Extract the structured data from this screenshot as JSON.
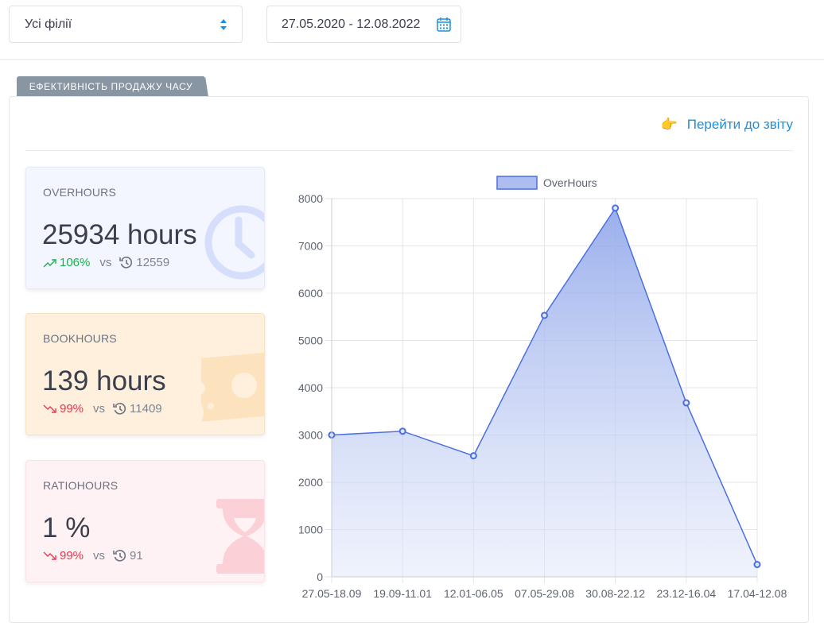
{
  "filters": {
    "branch_select": "Усі філії",
    "date_range": "27.05.2020 - 12.08.2022"
  },
  "section": {
    "tab_label": "ЕФЕКТИВНІСТЬ ПРОДАЖУ ЧАСУ",
    "report_link": "Перейти до звіту",
    "report_link_icon": "👉"
  },
  "cards": [
    {
      "label": "OVERHOURS",
      "value": "25934 hours",
      "trend": "up",
      "pct": "106%",
      "vs": "vs",
      "prev": "12559",
      "icon": "clock-icon"
    },
    {
      "label": "BOOKHOURS",
      "value": "139 hours",
      "trend": "down",
      "pct": "99%",
      "vs": "vs",
      "prev": "11409",
      "icon": "ticket-icon"
    },
    {
      "label": "RATIOHOURS",
      "value": "1 %",
      "trend": "down",
      "pct": "99%",
      "vs": "vs",
      "prev": "91",
      "icon": "hourglass-icon"
    }
  ],
  "colors": {
    "accent": "#1c8fe0",
    "up": "#1bb14f",
    "down": "#e8384f",
    "series": "#4b6fe0"
  },
  "chart_data": {
    "type": "area",
    "categories": [
      "27.05-18.09",
      "19.09-11.01",
      "12.01-06.05",
      "07.05-29.08",
      "30.08-22.12",
      "23.12-16.04",
      "17.04-12.08"
    ],
    "series": [
      {
        "name": "OverHours",
        "values": [
          3000,
          3080,
          2560,
          5530,
          7800,
          3680,
          260
        ]
      }
    ],
    "ylim": [
      0,
      8000
    ],
    "yticks": [
      "0",
      "1000",
      "2000",
      "3000",
      "4000",
      "5000",
      "6000",
      "7000",
      "8000"
    ],
    "grid": true,
    "legend": "top"
  }
}
